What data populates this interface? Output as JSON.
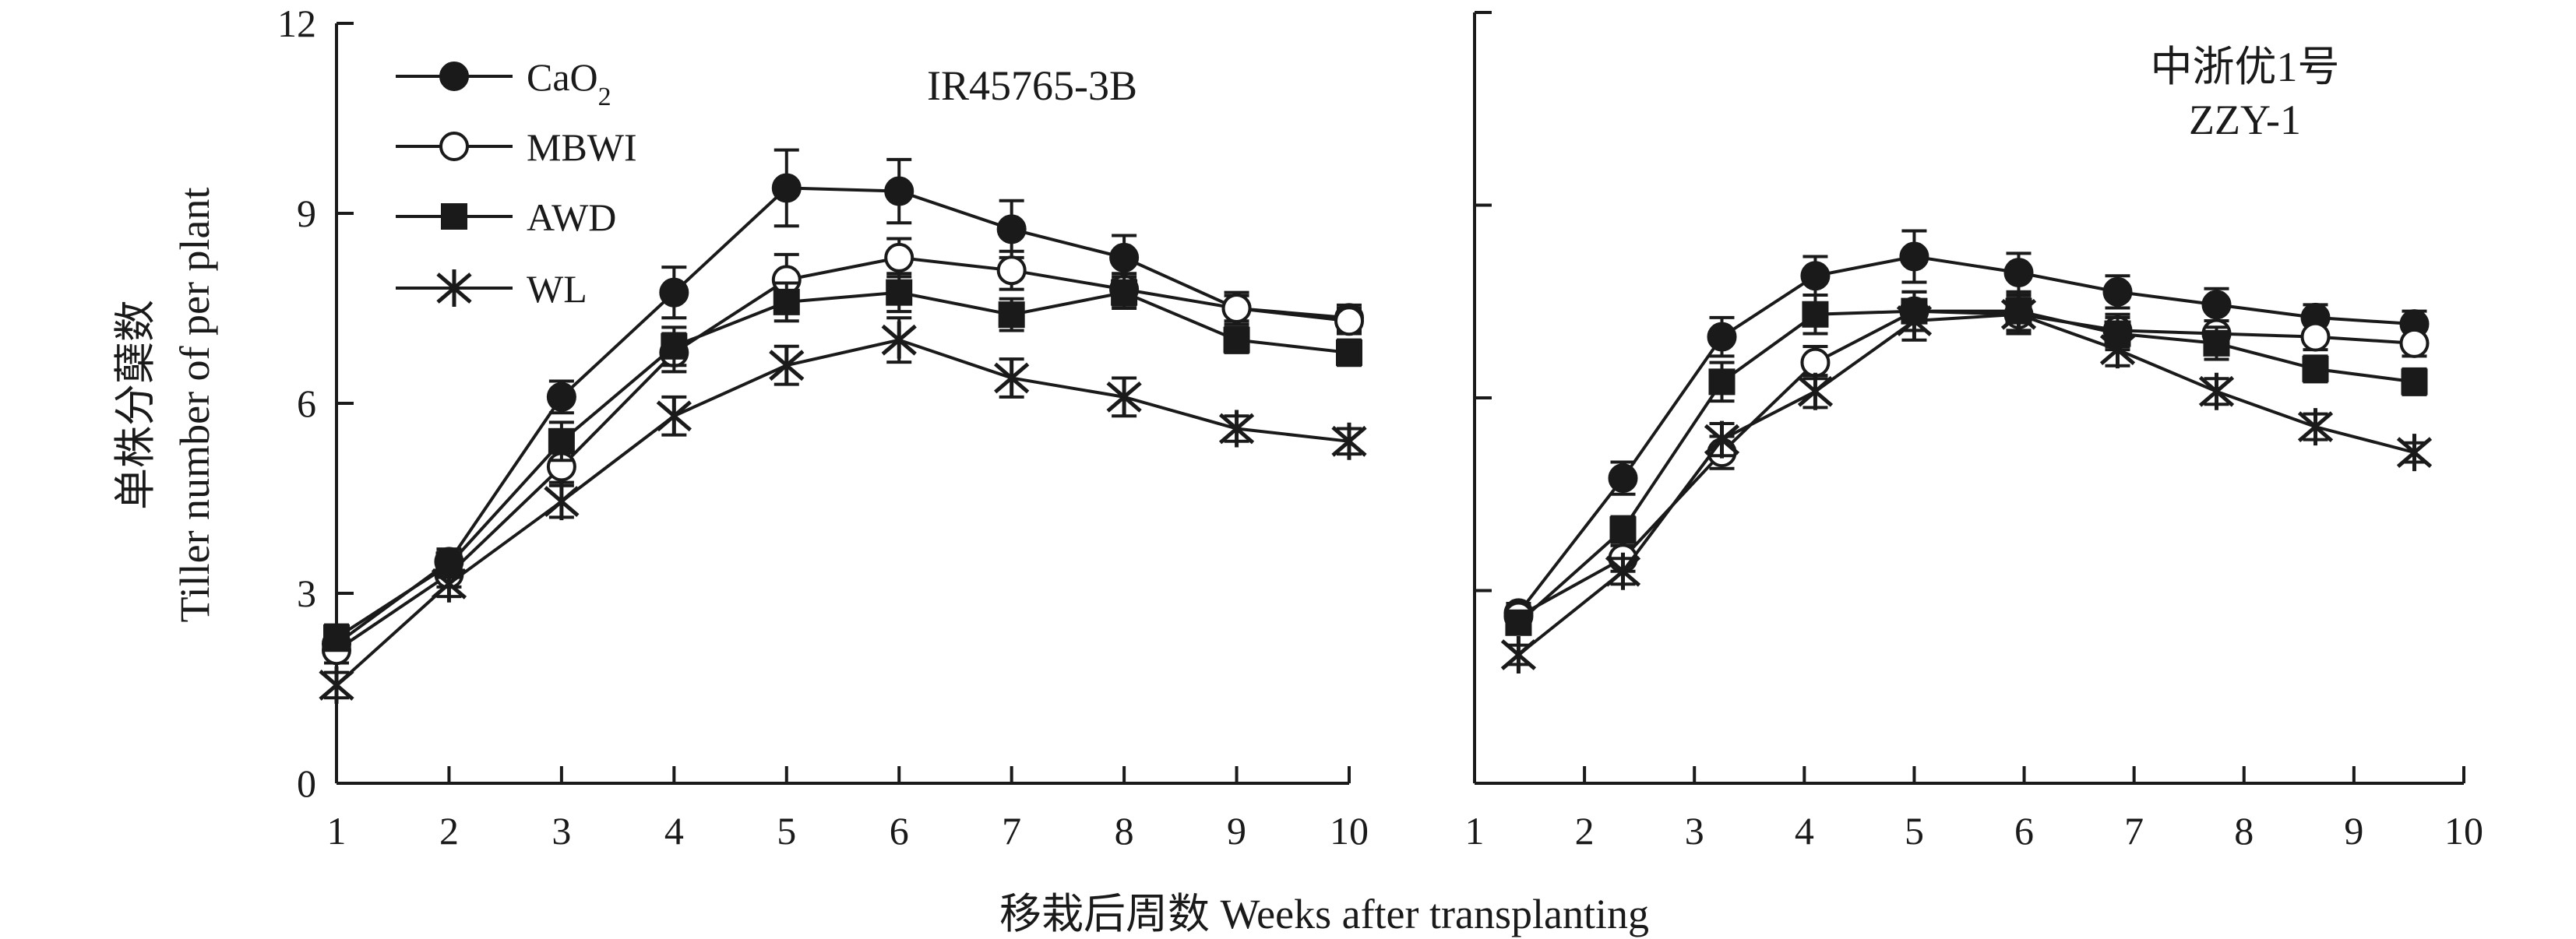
{
  "chart_data": [
    {
      "type": "line",
      "title": "IR45765-3B",
      "ylabel_zh": "单株分蘖数",
      "ylabel_en": "Tiller number of per plant",
      "xlim": [
        1,
        10
      ],
      "ylim": [
        0,
        12
      ],
      "xticks": [
        "1",
        "2",
        "3",
        "4",
        "5",
        "6",
        "7",
        "8",
        "9",
        "10"
      ],
      "yticks": [
        "0",
        "3",
        "6",
        "9",
        "12"
      ],
      "x": [
        1,
        2,
        3,
        4,
        5,
        6,
        7,
        8,
        9,
        10
      ],
      "series": [
        {
          "name": "CaO",
          "name_sub": "2",
          "marker": "filled-circle",
          "values": [
            2.2,
            3.5,
            6.1,
            7.75,
            9.4,
            9.35,
            8.75,
            8.3,
            7.5,
            7.35
          ],
          "errors": [
            0.2,
            0.2,
            0.25,
            0.4,
            0.6,
            0.5,
            0.45,
            0.35,
            0.25,
            0.2
          ]
        },
        {
          "name": "MBWI",
          "marker": "open-circle",
          "values": [
            2.1,
            3.3,
            5.0,
            6.8,
            7.95,
            8.3,
            8.1,
            7.8,
            7.5,
            7.3
          ],
          "errors": [
            0.2,
            0.2,
            0.25,
            0.3,
            0.4,
            0.3,
            0.3,
            0.25,
            0.2,
            0.2
          ]
        },
        {
          "name": "AWD",
          "marker": "filled-square",
          "values": [
            2.3,
            3.45,
            5.4,
            6.9,
            7.6,
            7.75,
            7.4,
            7.75,
            7.0,
            6.8
          ],
          "errors": [
            0.2,
            0.2,
            0.3,
            0.3,
            0.3,
            0.3,
            0.25,
            0.25,
            0.2,
            0.2
          ]
        },
        {
          "name": "WL",
          "marker": "asterisk",
          "values": [
            1.55,
            3.15,
            4.45,
            5.8,
            6.6,
            7.0,
            6.4,
            6.1,
            5.6,
            5.4
          ],
          "errors": [
            0.2,
            0.2,
            0.25,
            0.3,
            0.3,
            0.35,
            0.3,
            0.3,
            0.2,
            0.2
          ]
        }
      ]
    },
    {
      "type": "line",
      "title_zh": "中浙优1号",
      "title": "ZZY-1",
      "xlim": [
        1,
        10
      ],
      "ylim": [
        0,
        12
      ],
      "xticks": [
        "1",
        "2",
        "3",
        "4",
        "5",
        "6",
        "7",
        "8",
        "9",
        "10"
      ],
      "x": [
        1.4,
        2.35,
        3.25,
        4.1,
        5.0,
        5.95,
        6.85,
        7.75,
        8.65,
        9.55
      ],
      "series": [
        {
          "name": "CaO",
          "name_sub": "2",
          "marker": "filled-circle",
          "values": [
            2.65,
            4.75,
            6.95,
            7.9,
            8.2,
            7.95,
            7.65,
            7.45,
            7.25,
            7.15
          ],
          "errors": [
            0.15,
            0.25,
            0.3,
            0.3,
            0.4,
            0.3,
            0.25,
            0.25,
            0.2,
            0.2
          ]
        },
        {
          "name": "MBWI",
          "marker": "open-circle",
          "values": [
            2.6,
            3.5,
            5.15,
            6.55,
            7.35,
            7.3,
            7.05,
            7.0,
            6.95,
            6.85
          ],
          "errors": [
            0.15,
            0.2,
            0.25,
            0.25,
            0.3,
            0.25,
            0.25,
            0.2,
            0.2,
            0.2
          ]
        },
        {
          "name": "AWD",
          "marker": "filled-square",
          "values": [
            2.5,
            3.95,
            6.25,
            7.3,
            7.35,
            7.35,
            7.0,
            6.85,
            6.45,
            6.25
          ],
          "errors": [
            0.15,
            0.2,
            0.3,
            0.3,
            0.3,
            0.3,
            0.25,
            0.25,
            0.2,
            0.2
          ]
        },
        {
          "name": "WL",
          "marker": "asterisk",
          "values": [
            2.0,
            3.3,
            5.35,
            6.1,
            7.2,
            7.3,
            6.75,
            6.1,
            5.55,
            5.15
          ],
          "errors": [
            0.15,
            0.2,
            0.25,
            0.25,
            0.3,
            0.3,
            0.25,
            0.2,
            0.2,
            0.15
          ]
        }
      ]
    }
  ],
  "xlabel": "移栽后周数 Weeks after transplanting",
  "legend": {
    "placement": "top-left",
    "entries": [
      {
        "label": "CaO",
        "sub": "2",
        "marker": "filled-circle"
      },
      {
        "label": "MBWI",
        "marker": "open-circle"
      },
      {
        "label": "AWD",
        "marker": "filled-square"
      },
      {
        "label": "WL",
        "marker": "asterisk"
      }
    ]
  },
  "colors": {
    "ink": "#1a1a1a",
    "background": "#ffffff"
  }
}
